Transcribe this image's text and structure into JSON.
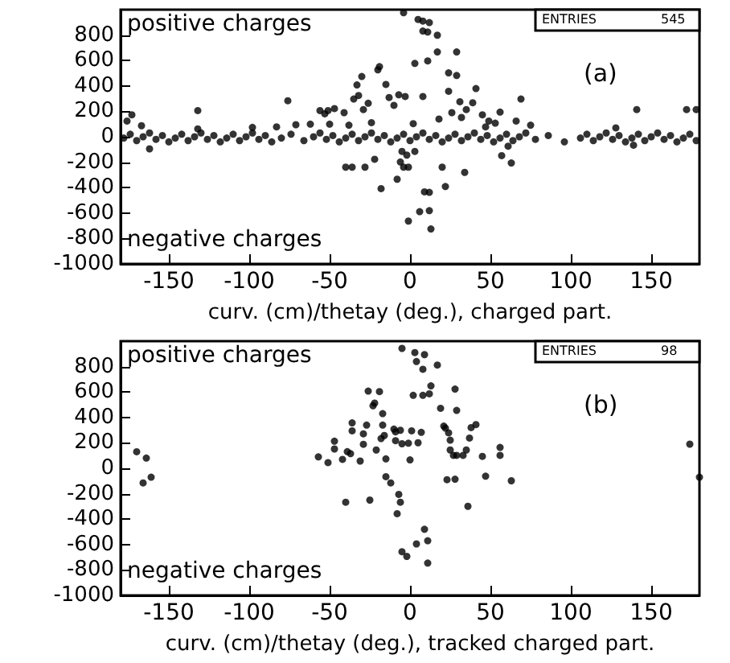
{
  "chart_data": [
    {
      "type": "scatter",
      "xlabel": "curv. (cm)/thetay (deg.), charged part.",
      "color": "#000000",
      "marker": "circle",
      "xlim": [
        -180,
        180
      ],
      "ylim": [
        -1000,
        1000
      ],
      "xticks": [
        -150,
        -100,
        -50,
        0,
        50,
        100,
        150
      ],
      "yticks": [
        -1000,
        -800,
        -600,
        -400,
        -200,
        0,
        200,
        400,
        600,
        800
      ],
      "annotations": [
        "positive charges",
        "negative charges",
        "(a)",
        "ENTRIES",
        "545"
      ],
      "x": [
        -176,
        -173,
        -167,
        -162,
        -132,
        -132,
        -98,
        -83,
        -76,
        -71,
        -62,
        -56,
        -53,
        -51,
        -50,
        -47,
        -40,
        -36,
        -28,
        -41,
        -38,
        -35,
        -33,
        -32,
        -30,
        -29,
        -26,
        -24,
        -22,
        -20,
        -19,
        -18,
        -15,
        -13,
        -10,
        -8,
        -7,
        -6,
        -5,
        -4,
        -3,
        -2,
        -1,
        -1,
        2,
        3,
        3,
        6,
        8,
        9,
        11,
        12,
        12,
        13,
        17,
        18,
        20,
        22,
        24,
        24,
        26,
        29,
        29,
        31,
        32,
        34,
        35,
        39,
        41,
        45,
        47,
        49,
        53,
        56,
        57,
        61,
        63,
        66,
        69,
        75,
        141,
        139,
        128,
        172,
        178,
        -4,
        5,
        8,
        12,
        8,
        11,
        17,
        -178,
        -174,
        -170,
        -166,
        -162,
        -158,
        -154,
        -150,
        -146,
        -142,
        -138,
        -134,
        -130,
        -126,
        -122,
        -118,
        -114,
        -110,
        -106,
        -102,
        -98,
        -94,
        -90,
        -86,
        -80,
        -74,
        -66,
        -60,
        -56,
        -52,
        -48,
        -44,
        -40,
        -36,
        -32,
        -28,
        -24,
        -20,
        -16,
        -12,
        -8,
        -4,
        0,
        4,
        8,
        12,
        16,
        20,
        24,
        28,
        32,
        36,
        40,
        44,
        48,
        52,
        56,
        60,
        64,
        68,
        72,
        78,
        86,
        96,
        106,
        110,
        114,
        118,
        122,
        126,
        130,
        134,
        138,
        142,
        146,
        150,
        154,
        158,
        162,
        166,
        170,
        174,
        178
      ],
      "values": [
        124,
        173,
        87,
        -95,
        206,
        62,
        74,
        78,
        284,
        95,
        99,
        206,
        181,
        206,
        99,
        222,
        -239,
        -239,
        -239,
        190,
        91,
        297,
        408,
        325,
        474,
        214,
        264,
        111,
        -177,
        527,
        552,
        -408,
        412,
        309,
        247,
        -334,
        330,
        -198,
        -115,
        -239,
        317,
        -144,
        -239,
        -663,
        103,
        577,
        -115,
        -589,
        317,
        -433,
        597,
        -581,
        -437,
        -725,
        667,
        140,
        -239,
        -391,
        358,
        503,
        190,
        482,
        667,
        276,
        152,
        -280,
        214,
        268,
        379,
        173,
        78,
        124,
        107,
        194,
        -148,
        -74,
        -206,
        124,
        297,
        91,
        214,
        -66,
        70,
        214,
        214,
        976,
        923,
        910,
        898,
        832,
        824,
        799,
        -10,
        20,
        -30,
        0,
        30,
        -20,
        10,
        -40,
        -10,
        20,
        -30,
        0,
        30,
        -20,
        10,
        -40,
        -10,
        20,
        -30,
        0,
        30,
        -20,
        10,
        -40,
        -10,
        20,
        -30,
        0,
        30,
        -20,
        10,
        -40,
        -10,
        20,
        -30,
        0,
        30,
        -20,
        10,
        -40,
        -10,
        20,
        -30,
        0,
        30,
        -20,
        10,
        -40,
        -10,
        20,
        -30,
        0,
        30,
        -20,
        10,
        -40,
        -10,
        20,
        -30,
        0,
        30,
        -20,
        10,
        -40,
        -10,
        20,
        -30,
        0,
        30,
        -20,
        10,
        -40,
        -10,
        20,
        -30,
        0,
        30,
        -20,
        10,
        -40,
        -10,
        20,
        -30
      ]
    },
    {
      "type": "scatter",
      "xlabel": "curv. (cm)/thetay (deg.), tracked charged part.",
      "color": "#000000",
      "marker": "circle",
      "xlim": [
        -180,
        180
      ],
      "ylim": [
        -1000,
        1000
      ],
      "xticks": [
        -150,
        -100,
        -50,
        0,
        50,
        100,
        150
      ],
      "yticks": [
        -1000,
        -800,
        -600,
        -400,
        -200,
        0,
        200,
        400,
        600,
        800
      ],
      "annotations": [
        "positive charges",
        "negative charges",
        "(b)",
        "ENTRIES",
        "98"
      ],
      "x": [
        -170,
        -164,
        -166,
        -161,
        174,
        180,
        -57,
        -51,
        -47,
        -47,
        -42,
        -40,
        -39,
        -37,
        -36,
        -36,
        -31,
        -29,
        -29,
        -27,
        -26,
        -25,
        -23,
        -22,
        -21,
        -19,
        -18,
        -17,
        -17,
        -16,
        -15,
        -15,
        -12,
        -10,
        -9,
        -9,
        -8,
        -7,
        -6,
        -6,
        -5,
        -5,
        -5,
        -2,
        -1,
        0,
        1,
        2,
        3,
        4,
        4,
        5,
        7,
        8,
        8,
        9,
        9,
        11,
        11,
        12,
        13,
        17,
        19,
        21,
        22,
        23,
        24,
        25,
        25,
        27,
        28,
        28,
        29,
        29,
        33,
        35,
        36,
        37,
        38,
        41,
        45,
        47,
        56,
        56,
        63
      ],
      "values": [
        130,
        80,
        -115,
        -70,
        190,
        -70,
        90,
        45,
        213,
        152,
        70,
        -267,
        131,
        115,
        295,
        357,
        57,
        189,
        271,
        340,
        607,
        -250,
        492,
        513,
        144,
        603,
        234,
        340,
        430,
        258,
        74,
        -66,
        -115,
        308,
        287,
        217,
        -357,
        -205,
        -267,
        299,
        193,
        943,
        -656,
        -693,
        197,
        66,
        295,
        574,
        910,
        840,
        -595,
        201,
        283,
        779,
        574,
        894,
        -480,
        -746,
        -570,
        586,
        648,
        812,
        472,
        332,
        316,
        -90,
        279,
        221,
        144,
        102,
        -86,
        623,
        455,
        102,
        102,
        144,
        -299,
        238,
        320,
        344,
        94,
        -62,
        164,
        102,
        -98
      ]
    }
  ]
}
